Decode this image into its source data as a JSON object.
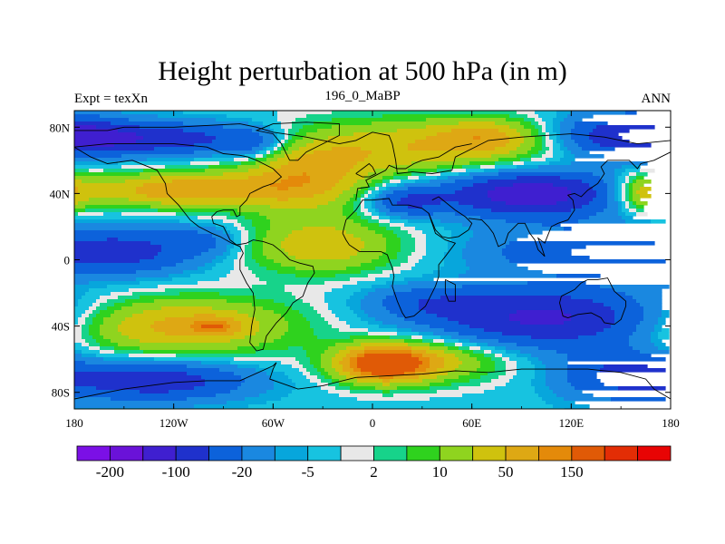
{
  "chart_data": {
    "type": "heatmap",
    "title": "Height perturbation at 500 hPa (in m)",
    "left_string": "Expt = texXn",
    "center_string": "196_0_MaBP",
    "right_string": "ANN",
    "x_ticks": [
      {
        "value": -180,
        "label": "180"
      },
      {
        "value": -120,
        "label": "120W"
      },
      {
        "value": -60,
        "label": "60W"
      },
      {
        "value": 0,
        "label": "0"
      },
      {
        "value": 60,
        "label": "60E"
      },
      {
        "value": 120,
        "label": "120E"
      },
      {
        "value": 180,
        "label": "180"
      }
    ],
    "y_ticks": [
      {
        "value": 80,
        "label": "80N"
      },
      {
        "value": 40,
        "label": "40N"
      },
      {
        "value": 0,
        "label": "0"
      },
      {
        "value": -40,
        "label": "40S"
      },
      {
        "value": -80,
        "label": "80S"
      }
    ],
    "xlim": [
      -180,
      180
    ],
    "ylim": [
      -90,
      90
    ],
    "colorbar": {
      "colors": [
        "#7b10e6",
        "#6a12d8",
        "#3f1fd0",
        "#1f31cc",
        "#0c62db",
        "#1a88e0",
        "#07a6dc",
        "#17c3e0",
        "#e8e8e8",
        "#17d38a",
        "#2fd21e",
        "#8fd41f",
        "#cfc20e",
        "#dea814",
        "#e48a0a",
        "#e05a06",
        "#e32d05",
        "#e80404"
      ],
      "labels": [
        {
          "boundary": 1,
          "text": "-200"
        },
        {
          "boundary": 3,
          "text": "-100"
        },
        {
          "boundary": 5,
          "text": "-20"
        },
        {
          "boundary": 7,
          "text": "-5"
        },
        {
          "boundary": 9,
          "text": "2"
        },
        {
          "boundary": 11,
          "text": "10"
        },
        {
          "boundary": 13,
          "text": "50"
        },
        {
          "boundary": 15,
          "text": "150"
        }
      ]
    },
    "field_blobs": [
      {
        "lon": -128,
        "lat": 73,
        "rlon": 55,
        "rlat": 10,
        "amp": -3.6
      },
      {
        "lon": -170,
        "lat": 75,
        "rlon": 25,
        "rlat": 10,
        "amp": -2.2
      },
      {
        "lon": -72,
        "lat": 70,
        "rlon": 20,
        "rlat": 10,
        "amp": -1.8
      },
      {
        "lon": -115,
        "lat": 42,
        "rlon": 60,
        "rlat": 11,
        "amp": 3.5
      },
      {
        "lon": -40,
        "lat": 50,
        "rlon": 40,
        "rlat": 22,
        "amp": 2.8
      },
      {
        "lon": 35,
        "lat": 68,
        "rlon": 80,
        "rlat": 18,
        "amp": 2.7
      },
      {
        "lon": 70,
        "lat": 75,
        "rlon": 30,
        "rlat": 10,
        "amp": 1.6
      },
      {
        "lon": 150,
        "lat": 75,
        "rlon": 40,
        "rlat": 14,
        "amp": -3.8
      },
      {
        "lon": 95,
        "lat": 40,
        "rlon": 55,
        "rlat": 14,
        "amp": -5.2
      },
      {
        "lon": 20,
        "lat": 35,
        "rlon": 22,
        "rlat": 9,
        "amp": -2.6
      },
      {
        "lon": 168,
        "lat": 40,
        "rlon": 22,
        "rlat": 12,
        "amp": 3.2
      },
      {
        "lon": -148,
        "lat": 5,
        "rlon": 45,
        "rlat": 14,
        "amp": -2.8
      },
      {
        "lon": -100,
        "lat": 12,
        "rlon": 22,
        "rlat": 9,
        "amp": -1.4
      },
      {
        "lon": -30,
        "lat": 8,
        "rlon": 48,
        "rlat": 17,
        "amp": 2.6
      },
      {
        "lon": 130,
        "lat": 5,
        "rlon": 65,
        "rlat": 14,
        "amp": -2.6
      },
      {
        "lon": 30,
        "lat": -25,
        "rlon": 35,
        "rlat": 10,
        "amp": -1.5
      },
      {
        "lon": 105,
        "lat": -35,
        "rlon": 75,
        "rlat": 18,
        "amp": -4.4
      },
      {
        "lon": -120,
        "lat": -40,
        "rlon": 75,
        "rlat": 18,
        "amp": 3.2
      },
      {
        "lon": -95,
        "lat": -40,
        "rlon": 15,
        "rlat": 5,
        "amp": 1.6
      },
      {
        "lon": 5,
        "lat": -63,
        "rlon": 30,
        "rlat": 12,
        "amp": 4.6
      },
      {
        "lon": 40,
        "lat": -60,
        "rlon": 45,
        "rlat": 14,
        "amp": 2.2
      },
      {
        "lon": -130,
        "lat": -73,
        "rlon": 55,
        "rlat": 12,
        "amp": -3.6
      },
      {
        "lon": 150,
        "lat": -70,
        "rlon": 38,
        "rlat": 16,
        "amp": -2.8
      }
    ],
    "field_levels": [
      {
        "t": -5.2,
        "color": "#3f1fd0"
      },
      {
        "t": -4.0,
        "color": "#1f31cc"
      },
      {
        "t": -2.6,
        "color": "#0c62db"
      },
      {
        "t": -1.4,
        "color": "#1a88e0"
      },
      {
        "t": -0.6,
        "color": "#07a6dc"
      },
      {
        "t": -0.25,
        "color": "#17c3e0"
      },
      {
        "t": 0.2,
        "color": "#e8e8e8"
      },
      {
        "t": 0.5,
        "color": "#17d38a"
      },
      {
        "t": 0.85,
        "color": "#2fd21e"
      },
      {
        "t": 1.3,
        "color": "#8fd41f"
      },
      {
        "t": 2.0,
        "color": "#cfc20e"
      },
      {
        "t": 2.8,
        "color": "#dea814"
      },
      {
        "t": 3.6,
        "color": "#e48a0a"
      },
      {
        "t": 4.2,
        "color": "#e05a06"
      }
    ],
    "coastline": [
      [
        [
          -180,
          78
        ],
        [
          -160,
          78
        ],
        [
          -150,
          80
        ],
        [
          -120,
          80
        ],
        [
          -100,
          81
        ],
        [
          -80,
          82
        ],
        [
          -70,
          80
        ],
        [
          -60,
          77
        ],
        [
          -40,
          74
        ],
        [
          -20,
          70
        ],
        [
          -10,
          72
        ],
        [
          0,
          77
        ],
        [
          10,
          75
        ],
        [
          12,
          70
        ],
        [
          14,
          60
        ],
        [
          15,
          52
        ],
        [
          24,
          53
        ],
        [
          36,
          52
        ],
        [
          48,
          54
        ],
        [
          50,
          62
        ],
        [
          70,
          72
        ],
        [
          90,
          74
        ],
        [
          120,
          76
        ],
        [
          140,
          74
        ],
        [
          160,
          70
        ],
        [
          180,
          72
        ]
      ],
      [
        [
          -180,
          68
        ],
        [
          -170,
          62
        ],
        [
          -160,
          58
        ],
        [
          -145,
          60
        ],
        [
          -130,
          54
        ],
        [
          -125,
          46
        ],
        [
          -124,
          40
        ],
        [
          -117,
          33
        ],
        [
          -110,
          24
        ],
        [
          -105,
          20
        ],
        [
          -97,
          16
        ],
        [
          -92,
          14
        ],
        [
          -85,
          10
        ],
        [
          -80,
          8
        ],
        [
          -78,
          4
        ],
        [
          -80,
          0
        ],
        [
          -80,
          -6
        ],
        [
          -76,
          -14
        ],
        [
          -72,
          -20
        ],
        [
          -71,
          -30
        ],
        [
          -73,
          -40
        ],
        [
          -74,
          -50
        ],
        [
          -70,
          -55
        ],
        [
          -66,
          -54
        ],
        [
          -64,
          -46
        ],
        [
          -58,
          -38
        ],
        [
          -52,
          -32
        ],
        [
          -48,
          -26
        ],
        [
          -42,
          -22
        ],
        [
          -39,
          -14
        ],
        [
          -35,
          -8
        ],
        [
          -36,
          -4
        ],
        [
          -44,
          -2
        ],
        [
          -50,
          0
        ],
        [
          -55,
          5
        ],
        [
          -60,
          9
        ],
        [
          -66,
          11
        ],
        [
          -72,
          12
        ],
        [
          -76,
          10
        ],
        [
          -82,
          9
        ],
        [
          -86,
          12
        ],
        [
          -88,
          16
        ],
        [
          -90,
          20
        ],
        [
          -96,
          22
        ],
        [
          -97,
          26
        ],
        [
          -94,
          29
        ],
        [
          -90,
          30
        ],
        [
          -84,
          30
        ],
        [
          -82,
          26
        ],
        [
          -80,
          27
        ],
        [
          -80,
          32
        ],
        [
          -76,
          36
        ],
        [
          -74,
          40
        ],
        [
          -70,
          42
        ],
        [
          -66,
          44
        ],
        [
          -60,
          46
        ],
        [
          -55,
          50
        ],
        [
          -60,
          55
        ],
        [
          -66,
          58
        ],
        [
          -70,
          60
        ],
        [
          -75,
          62
        ],
        [
          -80,
          63
        ],
        [
          -90,
          64
        ],
        [
          -100,
          68
        ],
        [
          -120,
          70
        ],
        [
          -140,
          70
        ],
        [
          -160,
          70
        ],
        [
          -180,
          68
        ]
      ],
      [
        [
          -18,
          16
        ],
        [
          -16,
          12
        ],
        [
          -14,
          9
        ],
        [
          -8,
          5
        ],
        [
          0,
          5
        ],
        [
          5,
          5
        ],
        [
          9,
          3
        ],
        [
          10,
          0
        ],
        [
          12,
          -5
        ],
        [
          13,
          -10
        ],
        [
          12,
          -16
        ],
        [
          15,
          -25
        ],
        [
          18,
          -32
        ],
        [
          20,
          -35
        ],
        [
          25,
          -34
        ],
        [
          32,
          -28
        ],
        [
          35,
          -22
        ],
        [
          38,
          -16
        ],
        [
          40,
          -10
        ],
        [
          40,
          -3
        ],
        [
          44,
          2
        ],
        [
          50,
          10
        ],
        [
          44,
          12
        ],
        [
          38,
          16
        ],
        [
          34,
          28
        ],
        [
          30,
          31
        ],
        [
          22,
          33
        ],
        [
          12,
          33
        ],
        [
          10,
          37
        ],
        [
          0,
          36
        ],
        [
          -6,
          36
        ],
        [
          -10,
          30
        ],
        [
          -16,
          24
        ],
        [
          -17,
          20
        ],
        [
          -18,
          16
        ]
      ],
      [
        [
          -10,
          36
        ],
        [
          -9,
          43
        ],
        [
          -2,
          44
        ],
        [
          -4,
          48
        ],
        [
          2,
          51
        ],
        [
          8,
          54
        ],
        [
          10,
          57
        ],
        [
          15,
          55
        ],
        [
          20,
          55
        ],
        [
          25,
          58
        ],
        [
          30,
          60
        ]
      ],
      [
        [
          30,
          60
        ],
        [
          40,
          62
        ],
        [
          50,
          68
        ],
        [
          60,
          70
        ]
      ],
      [
        [
          36,
          36
        ],
        [
          40,
          38
        ],
        [
          50,
          30
        ],
        [
          56,
          26
        ],
        [
          60,
          22
        ],
        [
          58,
          18
        ],
        [
          52,
          14
        ],
        [
          46,
          13
        ],
        [
          42,
          14
        ],
        [
          38,
          18
        ],
        [
          34,
          28
        ]
      ],
      [
        [
          58,
          25
        ],
        [
          66,
          24
        ],
        [
          70,
          20
        ],
        [
          73,
          16
        ],
        [
          76,
          8
        ],
        [
          80,
          10
        ],
        [
          82,
          16
        ],
        [
          88,
          22
        ],
        [
          92,
          22
        ],
        [
          95,
          16
        ],
        [
          98,
          12
        ],
        [
          100,
          6
        ],
        [
          104,
          2
        ],
        [
          102,
          8
        ],
        [
          100,
          13
        ],
        [
          104,
          10
        ],
        [
          106,
          15
        ],
        [
          108,
          20
        ],
        [
          112,
          22
        ],
        [
          118,
          24
        ],
        [
          122,
          30
        ],
        [
          121,
          36
        ],
        [
          118,
          39
        ],
        [
          122,
          40
        ],
        [
          126,
          38
        ],
        [
          130,
          42
        ],
        [
          136,
          46
        ],
        [
          140,
          52
        ],
        [
          138,
          56
        ],
        [
          142,
          60
        ],
        [
          155,
          60
        ],
        [
          160,
          55
        ],
        [
          162,
          58
        ],
        [
          170,
          60
        ],
        [
          180,
          65
        ]
      ],
      [
        [
          114,
          -22
        ],
        [
          113,
          -26
        ],
        [
          115,
          -34
        ],
        [
          118,
          -35
        ],
        [
          124,
          -33
        ],
        [
          132,
          -32
        ],
        [
          138,
          -35
        ],
        [
          140,
          -38
        ],
        [
          146,
          -39
        ],
        [
          150,
          -36
        ],
        [
          153,
          -28
        ],
        [
          153,
          -25
        ],
        [
          146,
          -19
        ],
        [
          142,
          -11
        ],
        [
          136,
          -12
        ],
        [
          130,
          -12
        ],
        [
          126,
          -14
        ],
        [
          122,
          -18
        ],
        [
          114,
          -22
        ]
      ],
      [
        [
          -180,
          -84
        ],
        [
          -150,
          -78
        ],
        [
          -120,
          -74
        ],
        [
          -100,
          -73
        ],
        [
          -80,
          -73
        ],
        [
          -60,
          -64
        ],
        [
          -58,
          -62
        ],
        [
          -60,
          -66
        ],
        [
          -62,
          -72
        ],
        [
          -45,
          -78
        ],
        [
          -30,
          -76
        ],
        [
          -10,
          -71
        ],
        [
          10,
          -70
        ],
        [
          30,
          -69
        ],
        [
          50,
          -67
        ],
        [
          70,
          -68
        ],
        [
          90,
          -66
        ],
        [
          110,
          -66
        ],
        [
          130,
          -66
        ],
        [
          150,
          -68
        ],
        [
          165,
          -72
        ],
        [
          170,
          -78
        ],
        [
          180,
          -84
        ]
      ],
      [
        [
          -50,
          60
        ],
        [
          -45,
          60
        ],
        [
          -40,
          65
        ],
        [
          -30,
          70
        ],
        [
          -20,
          75
        ],
        [
          -20,
          82
        ],
        [
          -40,
          83
        ],
        [
          -60,
          82
        ],
        [
          -70,
          78
        ],
        [
          -60,
          76
        ],
        [
          -55,
          70
        ],
        [
          -50,
          60
        ]
      ],
      [
        [
          44,
          -12
        ],
        [
          50,
          -15
        ],
        [
          50,
          -25
        ],
        [
          46,
          -25
        ],
        [
          44,
          -20
        ],
        [
          44,
          -12
        ]
      ],
      [
        [
          -10,
          52
        ],
        [
          -6,
          55
        ],
        [
          -2,
          58
        ],
        [
          0,
          56
        ],
        [
          2,
          52
        ],
        [
          -2,
          50
        ],
        [
          -6,
          50
        ],
        [
          -10,
          52
        ]
      ]
    ]
  }
}
